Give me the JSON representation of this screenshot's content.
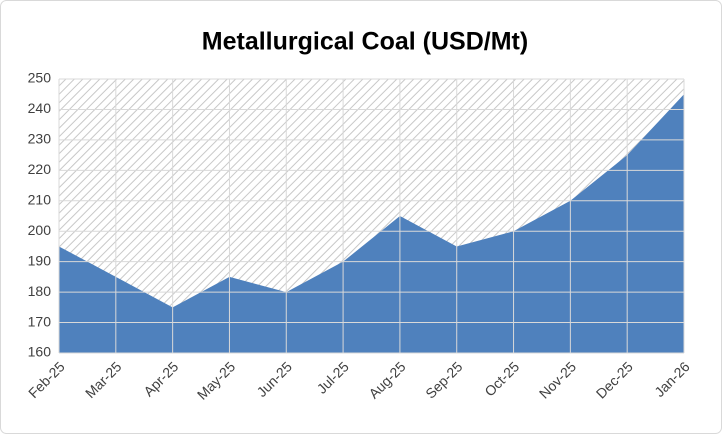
{
  "chart_data": {
    "type": "area",
    "title": "Metallurgical Coal (USD/Mt)",
    "categories": [
      "Feb-25",
      "Mar-25",
      "Apr-25",
      "May-25",
      "Jun-25",
      "Jul-25",
      "Aug-25",
      "Sep-25",
      "Oct-25",
      "Nov-25",
      "Dec-25",
      "Jan-26"
    ],
    "values": [
      195,
      185,
      175,
      185,
      180,
      190,
      205,
      195,
      200,
      210,
      225,
      245
    ],
    "color": "#4f81bd",
    "ylim": [
      160,
      250
    ],
    "yticks": [
      160,
      170,
      180,
      190,
      200,
      210,
      220,
      230,
      240,
      250
    ],
    "grid": true
  }
}
